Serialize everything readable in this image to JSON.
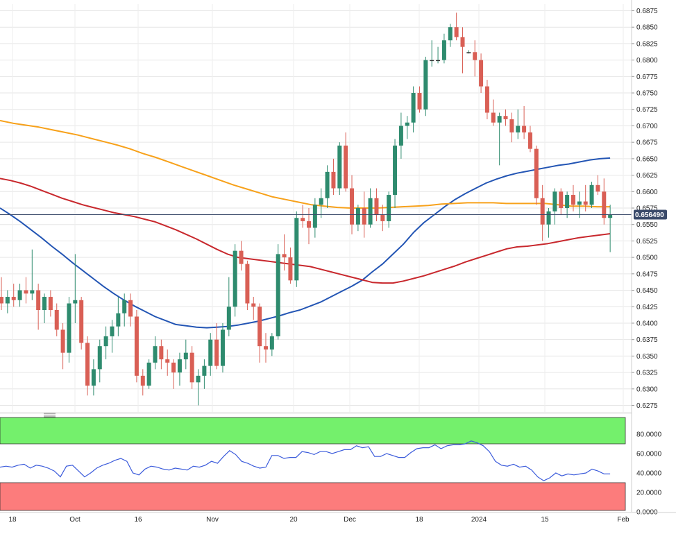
{
  "chart_data": [
    {
      "type": "candlestick",
      "instrument": "",
      "title": "",
      "ylim": [
        0.6265,
        0.6885
      ],
      "y_ticks": [
        "0.6875",
        "0.6850",
        "0.6825",
        "0.6800",
        "0.6775",
        "0.6750",
        "0.6725",
        "0.6700",
        "0.6675",
        "0.6650",
        "0.6625",
        "0.6600",
        "0.6575",
        "0.6550",
        "0.6525",
        "0.6500",
        "0.6475",
        "0.6450",
        "0.6425",
        "0.6400",
        "0.6375",
        "0.6350",
        "0.6325",
        "0.6300",
        "0.6275"
      ],
      "x_ticks": [
        "18",
        "Oct",
        "16",
        "Nov",
        "20",
        "Dec",
        "18",
        "2024",
        "15",
        "Feb"
      ],
      "last_price": 0.6565,
      "last_price_label": "0.656490",
      "colors": {
        "up": "#2e8b6e",
        "down": "#d95f55",
        "sma50": "#2355b4",
        "sma100": "#f7a11a",
        "sma200": "#c8282d",
        "last_line": "#3a4a6a"
      },
      "candles": [
        [
          0.644,
          0.647,
          0.642,
          0.643
        ],
        [
          0.643,
          0.645,
          0.6415,
          0.644
        ],
        [
          0.644,
          0.646,
          0.6425,
          0.6435
        ],
        [
          0.6435,
          0.646,
          0.6425,
          0.645
        ],
        [
          0.645,
          0.647,
          0.643,
          0.6445
        ],
        [
          0.6445,
          0.6512,
          0.6435,
          0.645
        ],
        [
          0.645,
          0.646,
          0.639,
          0.642
        ],
        [
          0.642,
          0.6445,
          0.64,
          0.644
        ],
        [
          0.644,
          0.645,
          0.641,
          0.642
        ],
        [
          0.642,
          0.643,
          0.638,
          0.639
        ],
        [
          0.639,
          0.64,
          0.633,
          0.6355
        ],
        [
          0.6355,
          0.644,
          0.634,
          0.643
        ],
        [
          0.643,
          0.6505,
          0.64,
          0.6435
        ],
        [
          0.6435,
          0.644,
          0.636,
          0.637
        ],
        [
          0.637,
          0.638,
          0.629,
          0.6305
        ],
        [
          0.6305,
          0.6345,
          0.629,
          0.633
        ],
        [
          0.633,
          0.6375,
          0.631,
          0.6365
        ],
        [
          0.6365,
          0.6395,
          0.6345,
          0.638
        ],
        [
          0.638,
          0.6405,
          0.6355,
          0.6395
        ],
        [
          0.6395,
          0.644,
          0.638,
          0.6415
        ],
        [
          0.6415,
          0.6445,
          0.6395,
          0.6435
        ],
        [
          0.6435,
          0.6445,
          0.6395,
          0.641
        ],
        [
          0.641,
          0.642,
          0.631,
          0.632
        ],
        [
          0.632,
          0.633,
          0.629,
          0.6305
        ],
        [
          0.6305,
          0.6345,
          0.63,
          0.634
        ],
        [
          0.634,
          0.638,
          0.633,
          0.6365
        ],
        [
          0.6365,
          0.6375,
          0.633,
          0.6345
        ],
        [
          0.6345,
          0.636,
          0.632,
          0.634
        ],
        [
          0.634,
          0.6345,
          0.63,
          0.6325
        ],
        [
          0.6325,
          0.6355,
          0.6305,
          0.6345
        ],
        [
          0.6345,
          0.6375,
          0.633,
          0.6355
        ],
        [
          0.6355,
          0.6365,
          0.63,
          0.631
        ],
        [
          0.631,
          0.633,
          0.6275,
          0.632
        ],
        [
          0.632,
          0.6345,
          0.63,
          0.6335
        ],
        [
          0.6335,
          0.6385,
          0.632,
          0.6375
        ],
        [
          0.6375,
          0.64,
          0.633,
          0.6335
        ],
        [
          0.6335,
          0.64,
          0.6325,
          0.639
        ],
        [
          0.639,
          0.647,
          0.638,
          0.6425
        ],
        [
          0.6425,
          0.652,
          0.641,
          0.651
        ],
        [
          0.651,
          0.6525,
          0.648,
          0.649
        ],
        [
          0.649,
          0.6495,
          0.642,
          0.643
        ],
        [
          0.643,
          0.644,
          0.6405,
          0.6425
        ],
        [
          0.6425,
          0.643,
          0.634,
          0.6365
        ],
        [
          0.6365,
          0.6385,
          0.634,
          0.636
        ],
        [
          0.636,
          0.6385,
          0.635,
          0.638
        ],
        [
          0.638,
          0.652,
          0.6375,
          0.6505
        ],
        [
          0.6505,
          0.6535,
          0.648,
          0.65
        ],
        [
          0.65,
          0.6515,
          0.646,
          0.6465
        ],
        [
          0.6465,
          0.657,
          0.6455,
          0.656
        ],
        [
          0.656,
          0.658,
          0.6545,
          0.6555
        ],
        [
          0.6555,
          0.6575,
          0.652,
          0.6545
        ],
        [
          0.6545,
          0.659,
          0.653,
          0.658
        ],
        [
          0.658,
          0.6605,
          0.656,
          0.659
        ],
        [
          0.659,
          0.664,
          0.6575,
          0.663
        ],
        [
          0.663,
          0.665,
          0.6595,
          0.6605
        ],
        [
          0.6605,
          0.6675,
          0.6595,
          0.667
        ],
        [
          0.667,
          0.669,
          0.66,
          0.6605
        ],
        [
          0.6605,
          0.6625,
          0.6535,
          0.655
        ],
        [
          0.655,
          0.658,
          0.654,
          0.6575
        ],
        [
          0.6575,
          0.66,
          0.653,
          0.655
        ],
        [
          0.655,
          0.6605,
          0.6545,
          0.659
        ],
        [
          0.659,
          0.6605,
          0.6555,
          0.6565
        ],
        [
          0.6565,
          0.658,
          0.654,
          0.6555
        ],
        [
          0.6555,
          0.66,
          0.6545,
          0.6595
        ],
        [
          0.6595,
          0.668,
          0.6575,
          0.667
        ],
        [
          0.667,
          0.672,
          0.665,
          0.67
        ],
        [
          0.67,
          0.6715,
          0.668,
          0.6705
        ],
        [
          0.6705,
          0.676,
          0.669,
          0.675
        ],
        [
          0.675,
          0.676,
          0.672,
          0.6725
        ],
        [
          0.6725,
          0.6805,
          0.6715,
          0.68
        ],
        [
          0.68,
          0.683,
          0.679,
          0.68
        ],
        [
          0.68,
          0.682,
          0.6795,
          0.68
        ],
        [
          0.68,
          0.684,
          0.6795,
          0.683
        ],
        [
          0.683,
          0.6855,
          0.682,
          0.685
        ],
        [
          0.685,
          0.6872,
          0.683,
          0.6835
        ],
        [
          0.6835,
          0.685,
          0.678,
          0.682
        ],
        [
          0.6812,
          0.6815,
          0.681,
          0.6812
        ],
        [
          0.6812,
          0.683,
          0.6775,
          0.68
        ],
        [
          0.68,
          0.681,
          0.675,
          0.676
        ],
        [
          0.676,
          0.677,
          0.671,
          0.672
        ],
        [
          0.672,
          0.674,
          0.67,
          0.6705
        ],
        [
          0.6705,
          0.672,
          0.664,
          0.6715
        ],
        [
          0.6715,
          0.6725,
          0.67,
          0.671
        ],
        [
          0.671,
          0.672,
          0.6675,
          0.669
        ],
        [
          0.669,
          0.6725,
          0.668,
          0.67
        ],
        [
          0.67,
          0.673,
          0.668,
          0.669
        ],
        [
          0.669,
          0.67,
          0.666,
          0.6665
        ],
        [
          0.6665,
          0.667,
          0.658,
          0.659
        ],
        [
          0.659,
          0.661,
          0.6525,
          0.655
        ],
        [
          0.655,
          0.6575,
          0.653,
          0.657
        ],
        [
          0.657,
          0.6605,
          0.655,
          0.66
        ],
        [
          0.66,
          0.6605,
          0.6565,
          0.6575
        ],
        [
          0.6575,
          0.66,
          0.656,
          0.6595
        ],
        [
          0.6595,
          0.661,
          0.657,
          0.658
        ],
        [
          0.658,
          0.66,
          0.656,
          0.6585
        ],
        [
          0.6585,
          0.661,
          0.657,
          0.658
        ],
        [
          0.658,
          0.6615,
          0.6575,
          0.661
        ],
        [
          0.661,
          0.6625,
          0.6595,
          0.66
        ],
        [
          0.66,
          0.662,
          0.655,
          0.656
        ],
        [
          0.656,
          0.658,
          0.6508,
          0.6565
        ]
      ],
      "series": [
        {
          "name": "",
          "color": "#2355b4",
          "values": [
            0.6575,
            0.6565,
            0.6554,
            0.6542,
            0.653,
            0.6517,
            0.6505,
            0.6492,
            0.648,
            0.6468,
            0.6456,
            0.6445,
            0.6435,
            0.6426,
            0.6418,
            0.641,
            0.6404,
            0.6398,
            0.6396,
            0.6394,
            0.6393,
            0.6394,
            0.6395,
            0.6397,
            0.64,
            0.6403,
            0.6407,
            0.6411,
            0.6416,
            0.642,
            0.6426,
            0.6432,
            0.644,
            0.6448,
            0.6456,
            0.6465,
            0.6478,
            0.649,
            0.6505,
            0.652,
            0.6538,
            0.6553,
            0.6565,
            0.6577,
            0.6588,
            0.6597,
            0.6605,
            0.6613,
            0.6619,
            0.6624,
            0.6628,
            0.6631,
            0.6634,
            0.6637,
            0.664,
            0.6642,
            0.6645,
            0.6648,
            0.665,
            0.6651
          ]
        },
        {
          "name": "",
          "color": "#f7a11a",
          "values": [
            0.6708,
            0.6704,
            0.6701,
            0.6698,
            0.6694,
            0.669,
            0.6686,
            0.6681,
            0.6676,
            0.6671,
            0.6665,
            0.6658,
            0.6652,
            0.6645,
            0.6638,
            0.6631,
            0.6624,
            0.6617,
            0.661,
            0.6604,
            0.6598,
            0.6592,
            0.6588,
            0.6584,
            0.658,
            0.6578,
            0.6576,
            0.6575,
            0.6575,
            0.6575,
            0.6576,
            0.6577,
            0.6578,
            0.6579,
            0.6581,
            0.6582,
            0.6583,
            0.6583,
            0.6583,
            0.6582,
            0.6582,
            0.6582,
            0.6582,
            0.658,
            0.6578,
            0.6578,
            0.6577,
            0.6577
          ]
        },
        {
          "name": "",
          "color": "#c8282d",
          "values": [
            0.662,
            0.6617,
            0.6613,
            0.6608,
            0.6602,
            0.6596,
            0.659,
            0.6585,
            0.658,
            0.6576,
            0.6572,
            0.6568,
            0.6565,
            0.6562,
            0.6558,
            0.6554,
            0.6548,
            0.6542,
            0.6535,
            0.6528,
            0.652,
            0.6512,
            0.6505,
            0.65,
            0.6498,
            0.6496,
            0.6494,
            0.6492,
            0.649,
            0.6488,
            0.6486,
            0.6482,
            0.6478,
            0.6474,
            0.647,
            0.6466,
            0.6462,
            0.6461,
            0.6461,
            0.6464,
            0.6468,
            0.6472,
            0.6477,
            0.6482,
            0.6487,
            0.6493,
            0.6498,
            0.6503,
            0.6508,
            0.6513,
            0.6516,
            0.6517,
            0.6519,
            0.6521,
            0.6524,
            0.6527,
            0.653,
            0.6532,
            0.6534,
            0.6536
          ]
        }
      ]
    },
    {
      "type": "line",
      "title": "",
      "ylim": [
        0,
        100
      ],
      "y_ticks": [
        "80.0000",
        "60.0000",
        "40.0000",
        "20.0000",
        "0.0000"
      ],
      "overbought": 70,
      "oversold": 30,
      "colors": {
        "line": "#3b5bdb",
        "overbought_zone": "#74f06c",
        "oversold_zone": "#fc7c7c"
      },
      "series": [
        {
          "name": "",
          "values": [
            46,
            47,
            46,
            48,
            49,
            45,
            48,
            47,
            45,
            42,
            36,
            47,
            48,
            42,
            36,
            40,
            45,
            48,
            50,
            53,
            55,
            52,
            40,
            38,
            44,
            47,
            46,
            44,
            43,
            45,
            44,
            43,
            47,
            46,
            48,
            52,
            50,
            57,
            63,
            59,
            52,
            50,
            47,
            45,
            46,
            58,
            58,
            55,
            56,
            56,
            62,
            61,
            59,
            62,
            62,
            60,
            62,
            64,
            64,
            68,
            66,
            67,
            57,
            57,
            60,
            58,
            56,
            56,
            61,
            65,
            66,
            66,
            69,
            65,
            68,
            69,
            69,
            70,
            73,
            71,
            68,
            62,
            52,
            48,
            47,
            49,
            46,
            47,
            43,
            36,
            32,
            35,
            40,
            37,
            39,
            38,
            39,
            40,
            44,
            42,
            39,
            39
          ]
        }
      ]
    }
  ]
}
